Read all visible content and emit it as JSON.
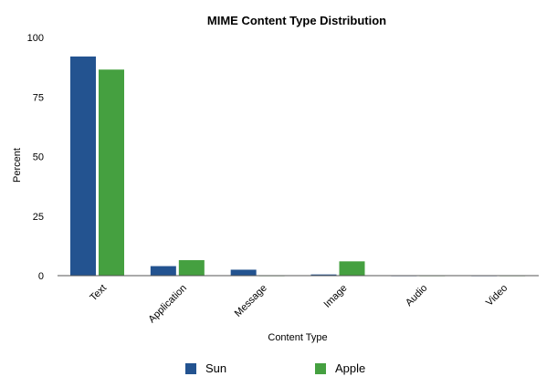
{
  "chart_data": {
    "type": "bar",
    "title": "MIME Content Type Distribution",
    "xlabel": "Content Type",
    "ylabel": "Percent",
    "categories": [
      "Text",
      "Application",
      "Message",
      "Image",
      "Audio",
      "Video"
    ],
    "series": [
      {
        "name": "Sun",
        "color": "#235390",
        "values": [
          92,
          4,
          2.5,
          0.5,
          0,
          0
        ]
      },
      {
        "name": "Apple",
        "color": "#45a040",
        "values": [
          86.5,
          6.5,
          0,
          6,
          0,
          0
        ]
      }
    ],
    "ylim": [
      0,
      100
    ],
    "yticks": [
      "0",
      "25",
      "50",
      "75",
      "100"
    ],
    "grid": false,
    "legend": "bottom"
  }
}
